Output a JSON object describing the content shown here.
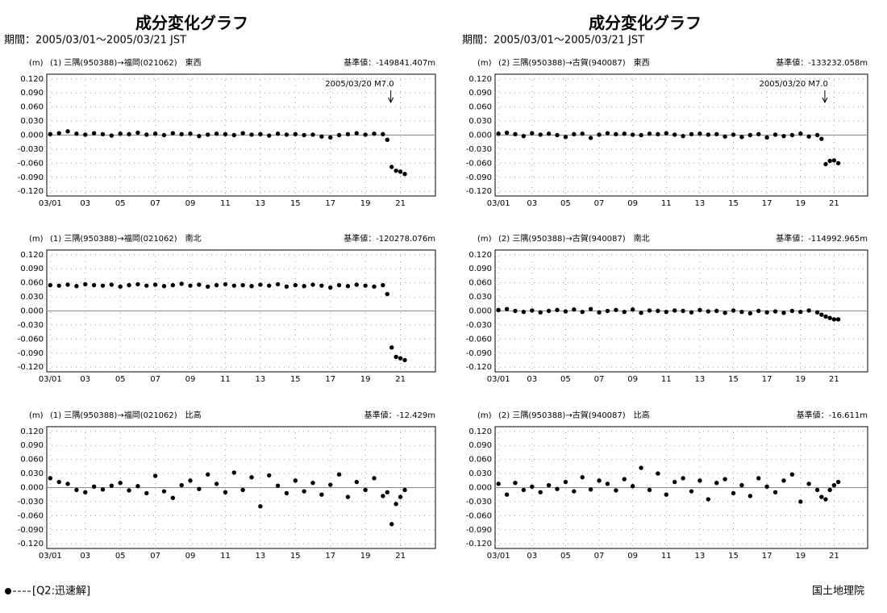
{
  "columns": [
    {
      "title": "成分変化グラフ",
      "period": "期間：2005/03/01～2005/03/21 JST"
    },
    {
      "title": "成分変化グラフ",
      "period": "期間：2005/03/01～2005/03/21 JST"
    }
  ],
  "legend": "[Q2:迅速解]",
  "footer": "国土地理院",
  "chart_data": [
    {
      "type": "scatter",
      "y_unit": "(m)",
      "title": "(1) 三隅(950388)→福岡(021062)　東西",
      "note": "基準値：-149841.407m",
      "annotation": {
        "text": "2005/03/20 M7.0",
        "x": 20.45
      },
      "color": "#000000",
      "grid": true,
      "xlim": [
        0.8,
        23
      ],
      "xticks": [
        {
          "value": 1,
          "label": "03/01"
        },
        {
          "value": 3,
          "label": "03"
        },
        {
          "value": 5,
          "label": "05"
        },
        {
          "value": 7,
          "label": "07"
        },
        {
          "value": 9,
          "label": "09"
        },
        {
          "value": 11,
          "label": "11"
        },
        {
          "value": 13,
          "label": "13"
        },
        {
          "value": 15,
          "label": "15"
        },
        {
          "value": 17,
          "label": "17"
        },
        {
          "value": 19,
          "label": "19"
        },
        {
          "value": 21,
          "label": "21"
        }
      ],
      "ylim": [
        -0.13,
        0.13
      ],
      "yticks": [
        {
          "value": 0.12,
          "label": "0.120"
        },
        {
          "value": 0.09,
          "label": "0.090"
        },
        {
          "value": 0.06,
          "label": "0.060"
        },
        {
          "value": 0.03,
          "label": "0.030"
        },
        {
          "value": 0,
          "label": "0.000"
        },
        {
          "value": -0.03,
          "label": "-0.030"
        },
        {
          "value": -0.06,
          "label": "-0.060"
        },
        {
          "value": -0.09,
          "label": "-0.090"
        },
        {
          "value": -0.12,
          "label": "-0.120"
        }
      ],
      "x": [
        1,
        1.5,
        2,
        2.5,
        3,
        3.5,
        4,
        4.5,
        5,
        5.5,
        6,
        6.5,
        7,
        7.5,
        8,
        8.5,
        9,
        9.5,
        10,
        10.5,
        11,
        11.5,
        12,
        12.5,
        13,
        13.5,
        14,
        14.5,
        15,
        15.5,
        16,
        16.5,
        17,
        17.5,
        18,
        18.5,
        19,
        19.5,
        20,
        20.25,
        20.5,
        20.75,
        21,
        21.25
      ],
      "values": [
        0.002,
        0.004,
        0.008,
        0.003,
        0.001,
        0.004,
        0.002,
        -0.001,
        0.003,
        0.002,
        0.005,
        0.001,
        0.003,
        0.0,
        0.004,
        0.002,
        0.003,
        -0.002,
        0.001,
        0.003,
        0.002,
        0.0,
        0.004,
        0.001,
        0.002,
        -0.001,
        0.003,
        0.001,
        0.002,
        0.0,
        0.001,
        -0.003,
        -0.005,
        0.0,
        0.002,
        0.004,
        0.001,
        0.003,
        0.002,
        -0.01,
        -0.068,
        -0.076,
        -0.078,
        -0.083
      ]
    },
    {
      "type": "scatter",
      "y_unit": "(m)",
      "title": "(1) 三隅(950388)→福岡(021062)　南北",
      "note": "基準値：-120278.076m",
      "color": "#000000",
      "grid": true,
      "xlim": [
        0.8,
        23
      ],
      "xticks": [
        {
          "value": 1,
          "label": "03/01"
        },
        {
          "value": 3,
          "label": "03"
        },
        {
          "value": 5,
          "label": "05"
        },
        {
          "value": 7,
          "label": "07"
        },
        {
          "value": 9,
          "label": "09"
        },
        {
          "value": 11,
          "label": "11"
        },
        {
          "value": 13,
          "label": "13"
        },
        {
          "value": 15,
          "label": "15"
        },
        {
          "value": 17,
          "label": "17"
        },
        {
          "value": 19,
          "label": "19"
        },
        {
          "value": 21,
          "label": "21"
        }
      ],
      "ylim": [
        -0.13,
        0.13
      ],
      "yticks": [
        {
          "value": 0.12,
          "label": "0.120"
        },
        {
          "value": 0.09,
          "label": "0.090"
        },
        {
          "value": 0.06,
          "label": "0.060"
        },
        {
          "value": 0.03,
          "label": "0.030"
        },
        {
          "value": 0,
          "label": "0.000"
        },
        {
          "value": -0.03,
          "label": "-0.030"
        },
        {
          "value": -0.06,
          "label": "-0.060"
        },
        {
          "value": -0.09,
          "label": "-0.090"
        },
        {
          "value": -0.12,
          "label": "-0.120"
        }
      ],
      "x": [
        1,
        1.5,
        2,
        2.5,
        3,
        3.5,
        4,
        4.5,
        5,
        5.5,
        6,
        6.5,
        7,
        7.5,
        8,
        8.5,
        9,
        9.5,
        10,
        10.5,
        11,
        11.5,
        12,
        12.5,
        13,
        13.5,
        14,
        14.5,
        15,
        15.5,
        16,
        16.5,
        17,
        17.5,
        18,
        18.5,
        19,
        19.5,
        20,
        20.25,
        20.5,
        20.75,
        21,
        21.25
      ],
      "values": [
        0.055,
        0.054,
        0.056,
        0.053,
        0.057,
        0.055,
        0.054,
        0.056,
        0.052,
        0.055,
        0.057,
        0.054,
        0.056,
        0.053,
        0.055,
        0.058,
        0.054,
        0.056,
        0.052,
        0.055,
        0.057,
        0.054,
        0.055,
        0.053,
        0.056,
        0.054,
        0.057,
        0.052,
        0.055,
        0.053,
        0.056,
        0.054,
        0.05,
        0.055,
        0.053,
        0.056,
        0.054,
        0.052,
        0.055,
        0.036,
        -0.078,
        -0.098,
        -0.101,
        -0.105
      ]
    },
    {
      "type": "scatter",
      "y_unit": "(m)",
      "title": "(1) 三隅(950388)→福岡(021062)　比高",
      "note": "基準値：-12.429m",
      "color": "#000000",
      "grid": true,
      "xlim": [
        0.8,
        23
      ],
      "xticks": [
        {
          "value": 1,
          "label": "03/01"
        },
        {
          "value": 3,
          "label": "03"
        },
        {
          "value": 5,
          "label": "05"
        },
        {
          "value": 7,
          "label": "07"
        },
        {
          "value": 9,
          "label": "09"
        },
        {
          "value": 11,
          "label": "11"
        },
        {
          "value": 13,
          "label": "13"
        },
        {
          "value": 15,
          "label": "15"
        },
        {
          "value": 17,
          "label": "17"
        },
        {
          "value": 19,
          "label": "19"
        },
        {
          "value": 21,
          "label": "21"
        }
      ],
      "ylim": [
        -0.13,
        0.13
      ],
      "yticks": [
        {
          "value": 0.12,
          "label": "0.120"
        },
        {
          "value": 0.09,
          "label": "0.090"
        },
        {
          "value": 0.06,
          "label": "0.060"
        },
        {
          "value": 0.03,
          "label": "0.030"
        },
        {
          "value": 0,
          "label": "0.000"
        },
        {
          "value": -0.03,
          "label": "-0.030"
        },
        {
          "value": -0.06,
          "label": "-0.060"
        },
        {
          "value": -0.09,
          "label": "-0.090"
        },
        {
          "value": -0.12,
          "label": "-0.120"
        }
      ],
      "x": [
        1,
        1.5,
        2,
        2.5,
        3,
        3.5,
        4,
        4.5,
        5,
        5.5,
        6,
        6.5,
        7,
        7.5,
        8,
        8.5,
        9,
        9.5,
        10,
        10.5,
        11,
        11.5,
        12,
        12.5,
        13,
        13.5,
        14,
        14.5,
        15,
        15.5,
        16,
        16.5,
        17,
        17.5,
        18,
        18.5,
        19,
        19.5,
        20,
        20.25,
        20.5,
        20.75,
        21,
        21.25
      ],
      "values": [
        0.02,
        0.012,
        0.008,
        -0.005,
        -0.01,
        0.002,
        -0.004,
        0.004,
        0.01,
        -0.006,
        0.003,
        -0.012,
        0.025,
        -0.008,
        -0.022,
        0.005,
        0.015,
        -0.003,
        0.028,
        0.008,
        -0.01,
        0.032,
        -0.005,
        0.022,
        -0.04,
        0.026,
        0.004,
        -0.012,
        0.015,
        -0.008,
        0.01,
        -0.015,
        0.006,
        0.028,
        -0.02,
        0.012,
        -0.005,
        0.02,
        -0.018,
        -0.01,
        -0.078,
        -0.035,
        -0.02,
        -0.005
      ]
    },
    {
      "type": "scatter",
      "y_unit": "(m)",
      "title": "(2) 三隅(950388)→古賀(940087)　東西",
      "note": "基準値：-133232.058m",
      "annotation": {
        "text": "2005/03/20 M7.0",
        "x": 20.45
      },
      "color": "#000000",
      "grid": true,
      "xlim": [
        0.8,
        23
      ],
      "xticks": [
        {
          "value": 1,
          "label": "03/01"
        },
        {
          "value": 3,
          "label": "03"
        },
        {
          "value": 5,
          "label": "05"
        },
        {
          "value": 7,
          "label": "07"
        },
        {
          "value": 9,
          "label": "09"
        },
        {
          "value": 11,
          "label": "11"
        },
        {
          "value": 13,
          "label": "13"
        },
        {
          "value": 15,
          "label": "15"
        },
        {
          "value": 17,
          "label": "17"
        },
        {
          "value": 19,
          "label": "19"
        },
        {
          "value": 21,
          "label": "21"
        }
      ],
      "ylim": [
        -0.13,
        0.13
      ],
      "yticks": [
        {
          "value": 0.12,
          "label": "0.120"
        },
        {
          "value": 0.09,
          "label": "0.090"
        },
        {
          "value": 0.06,
          "label": "0.060"
        },
        {
          "value": 0.03,
          "label": "0.030"
        },
        {
          "value": 0,
          "label": "0.000"
        },
        {
          "value": -0.03,
          "label": "-0.030"
        },
        {
          "value": -0.06,
          "label": "-0.060"
        },
        {
          "value": -0.09,
          "label": "-0.090"
        },
        {
          "value": -0.12,
          "label": "-0.120"
        }
      ],
      "x": [
        1,
        1.5,
        2,
        2.5,
        3,
        3.5,
        4,
        4.5,
        5,
        5.5,
        6,
        6.5,
        7,
        7.5,
        8,
        8.5,
        9,
        9.5,
        10,
        10.5,
        11,
        11.5,
        12,
        12.5,
        13,
        13.5,
        14,
        14.5,
        15,
        15.5,
        16,
        16.5,
        17,
        17.5,
        18,
        18.5,
        19,
        19.5,
        20,
        20.25,
        20.5,
        20.75,
        21,
        21.25
      ],
      "values": [
        0.003,
        0.005,
        0.002,
        -0.002,
        0.004,
        0.001,
        0.003,
        0.0,
        -0.004,
        0.002,
        0.003,
        -0.006,
        0.001,
        0.004,
        0.002,
        0.003,
        0.001,
        0.0,
        0.003,
        0.002,
        0.004,
        0.001,
        -0.002,
        0.002,
        0.003,
        0.001,
        0.002,
        -0.003,
        0.001,
        -0.004,
        0.0,
        0.002,
        -0.005,
        0.001,
        -0.002,
        0.0,
        0.003,
        -0.003,
        0.0,
        -0.008,
        -0.062,
        -0.055,
        -0.054,
        -0.06
      ]
    },
    {
      "type": "scatter",
      "y_unit": "(m)",
      "title": "(2) 三隅(950388)→古賀(940087)　南北",
      "note": "基準値：-114992.965m",
      "color": "#000000",
      "grid": true,
      "xlim": [
        0.8,
        23
      ],
      "xticks": [
        {
          "value": 1,
          "label": "03/01"
        },
        {
          "value": 3,
          "label": "03"
        },
        {
          "value": 5,
          "label": "05"
        },
        {
          "value": 7,
          "label": "07"
        },
        {
          "value": 9,
          "label": "09"
        },
        {
          "value": 11,
          "label": "11"
        },
        {
          "value": 13,
          "label": "13"
        },
        {
          "value": 15,
          "label": "15"
        },
        {
          "value": 17,
          "label": "17"
        },
        {
          "value": 19,
          "label": "19"
        },
        {
          "value": 21,
          "label": "21"
        }
      ],
      "ylim": [
        -0.13,
        0.13
      ],
      "yticks": [
        {
          "value": 0.12,
          "label": "0.120"
        },
        {
          "value": 0.09,
          "label": "0.090"
        },
        {
          "value": 0.06,
          "label": "0.060"
        },
        {
          "value": 0.03,
          "label": "0.030"
        },
        {
          "value": 0,
          "label": "0.000"
        },
        {
          "value": -0.03,
          "label": "-0.030"
        },
        {
          "value": -0.06,
          "label": "-0.060"
        },
        {
          "value": -0.09,
          "label": "-0.090"
        },
        {
          "value": -0.12,
          "label": "-0.120"
        }
      ],
      "x": [
        1,
        1.5,
        2,
        2.5,
        3,
        3.5,
        4,
        4.5,
        5,
        5.5,
        6,
        6.5,
        7,
        7.5,
        8,
        8.5,
        9,
        9.5,
        10,
        10.5,
        11,
        11.5,
        12,
        12.5,
        13,
        13.5,
        14,
        14.5,
        15,
        15.5,
        16,
        16.5,
        17,
        17.5,
        18,
        18.5,
        19,
        19.5,
        20,
        20.25,
        20.5,
        20.75,
        21,
        21.25
      ],
      "values": [
        0.002,
        0.004,
        0.0,
        -0.002,
        0.001,
        -0.003,
        0.0,
        0.002,
        -0.001,
        0.003,
        -0.002,
        0.004,
        -0.003,
        0.0,
        0.002,
        -0.002,
        0.003,
        -0.004,
        0.001,
        0.0,
        -0.002,
        0.001,
        0.0,
        -0.003,
        0.002,
        -0.001,
        0.0,
        -0.004,
        0.001,
        -0.002,
        -0.005,
        0.0,
        -0.003,
        -0.001,
        -0.004,
        0.0,
        -0.002,
        0.001,
        -0.003,
        -0.008,
        -0.012,
        -0.015,
        -0.018,
        -0.018
      ]
    },
    {
      "type": "scatter",
      "y_unit": "(m)",
      "title": "(2) 三隅(950388)→古賀(940087)　比高",
      "note": "基準値：-16.611m",
      "color": "#000000",
      "grid": true,
      "xlim": [
        0.8,
        23
      ],
      "xticks": [
        {
          "value": 1,
          "label": "03/01"
        },
        {
          "value": 3,
          "label": "03"
        },
        {
          "value": 5,
          "label": "05"
        },
        {
          "value": 7,
          "label": "07"
        },
        {
          "value": 9,
          "label": "09"
        },
        {
          "value": 11,
          "label": "11"
        },
        {
          "value": 13,
          "label": "13"
        },
        {
          "value": 15,
          "label": "15"
        },
        {
          "value": 17,
          "label": "17"
        },
        {
          "value": 19,
          "label": "19"
        },
        {
          "value": 21,
          "label": "21"
        }
      ],
      "ylim": [
        -0.13,
        0.13
      ],
      "yticks": [
        {
          "value": 0.12,
          "label": "0.120"
        },
        {
          "value": 0.09,
          "label": "0.090"
        },
        {
          "value": 0.06,
          "label": "0.060"
        },
        {
          "value": 0.03,
          "label": "0.030"
        },
        {
          "value": 0,
          "label": "0.000"
        },
        {
          "value": -0.03,
          "label": "-0.030"
        },
        {
          "value": -0.06,
          "label": "-0.060"
        },
        {
          "value": -0.09,
          "label": "-0.090"
        },
        {
          "value": -0.12,
          "label": "-0.120"
        }
      ],
      "x": [
        1,
        1.5,
        2,
        2.5,
        3,
        3.5,
        4,
        4.5,
        5,
        5.5,
        6,
        6.5,
        7,
        7.5,
        8,
        8.5,
        9,
        9.5,
        10,
        10.5,
        11,
        11.5,
        12,
        12.5,
        13,
        13.5,
        14,
        14.5,
        15,
        15.5,
        16,
        16.5,
        17,
        17.5,
        18,
        18.5,
        19,
        19.5,
        20,
        20.25,
        20.5,
        20.75,
        21,
        21.25
      ],
      "values": [
        0.008,
        -0.015,
        0.01,
        -0.005,
        0.002,
        -0.01,
        0.005,
        -0.003,
        0.012,
        -0.008,
        0.022,
        -0.004,
        0.015,
        0.008,
        -0.006,
        0.018,
        0.003,
        0.042,
        -0.005,
        0.03,
        -0.015,
        0.012,
        0.02,
        -0.008,
        0.015,
        -0.025,
        0.01,
        0.018,
        -0.012,
        0.005,
        -0.018,
        0.02,
        0.002,
        -0.01,
        0.015,
        0.028,
        -0.03,
        0.008,
        -0.005,
        -0.02,
        -0.025,
        -0.005,
        0.005,
        0.012
      ]
    }
  ]
}
